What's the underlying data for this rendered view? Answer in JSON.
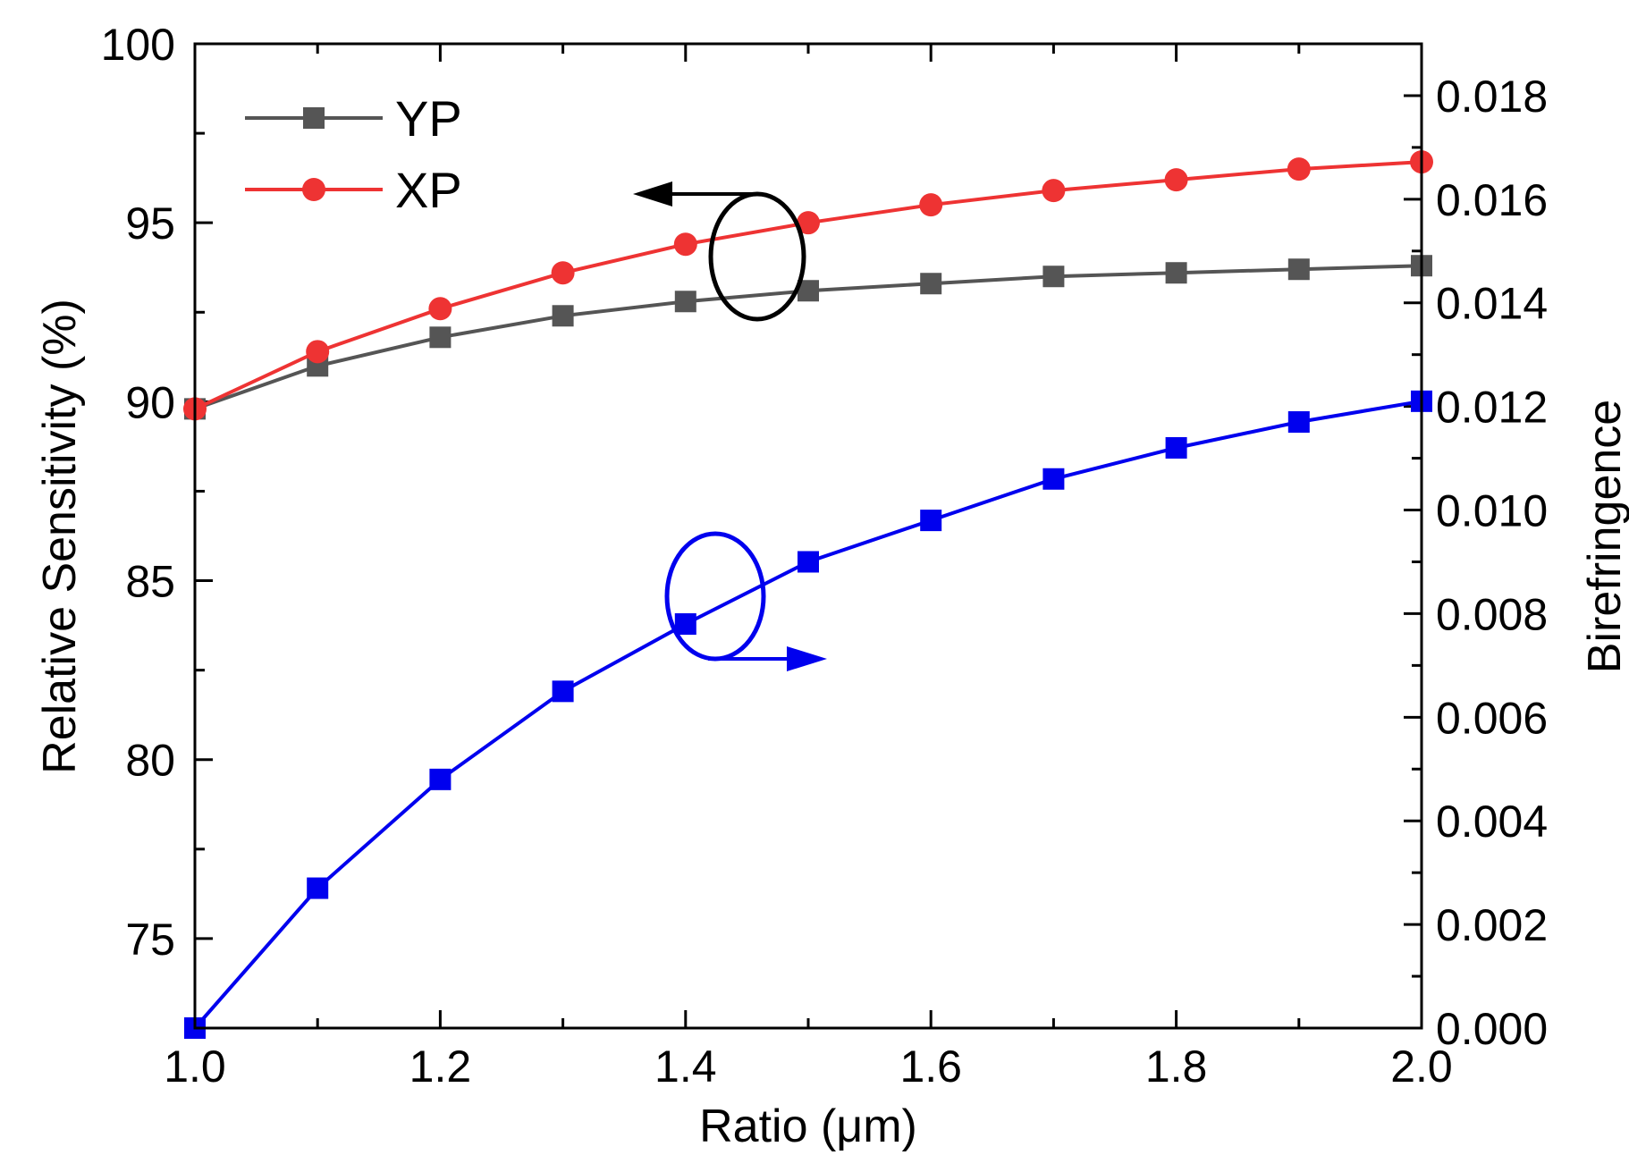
{
  "chart_data": {
    "type": "line",
    "x": [
      1.0,
      1.1,
      1.2,
      1.3,
      1.4,
      1.5,
      1.6,
      1.7,
      1.8,
      1.9,
      2.0
    ],
    "xlabel": "Ratio (μm)",
    "ylabel_left": "Relative Sensitivity (%)",
    "ylabel_right": "Birefringence",
    "xlim": [
      1.0,
      2.0
    ],
    "ylim_left": [
      72.5,
      100
    ],
    "ylim_right": [
      0.0,
      0.019
    ],
    "xticks": [
      "1.0",
      "1.2",
      "1.4",
      "1.6",
      "1.8",
      "2.0"
    ],
    "yticks_left": [
      "75",
      "80",
      "85",
      "90",
      "95",
      "100"
    ],
    "yticks_right": [
      "0.000",
      "0.002",
      "0.004",
      "0.006",
      "0.008",
      "0.010",
      "0.012",
      "0.014",
      "0.016",
      "0.018"
    ],
    "series": [
      {
        "name": "YP",
        "axis": "left",
        "color": "#555555",
        "marker": "square",
        "values": [
          89.8,
          91.0,
          91.8,
          92.4,
          92.8,
          93.1,
          93.3,
          93.5,
          93.6,
          93.7,
          93.8
        ]
      },
      {
        "name": "XP",
        "axis": "left",
        "color": "#ee3333",
        "marker": "circle",
        "values": [
          89.8,
          91.4,
          92.6,
          93.6,
          94.4,
          95.0,
          95.5,
          95.9,
          96.2,
          96.5,
          96.7
        ]
      },
      {
        "name": "Birefringence",
        "axis": "right",
        "color": "#0000ee",
        "marker": "square",
        "values": [
          0.0,
          0.0027,
          0.0048,
          0.0065,
          0.0078,
          0.009,
          0.0098,
          0.0106,
          0.0112,
          0.0117,
          0.0121
        ]
      }
    ],
    "legend": {
      "placement": "top-left",
      "entries": [
        "YP",
        "XP"
      ]
    },
    "annotations": [
      {
        "kind": "ellipse-arrow",
        "series": "YP / XP",
        "points_to": "left axis"
      },
      {
        "kind": "ellipse-arrow",
        "series": "Birefringence",
        "points_to": "right axis"
      }
    ]
  }
}
